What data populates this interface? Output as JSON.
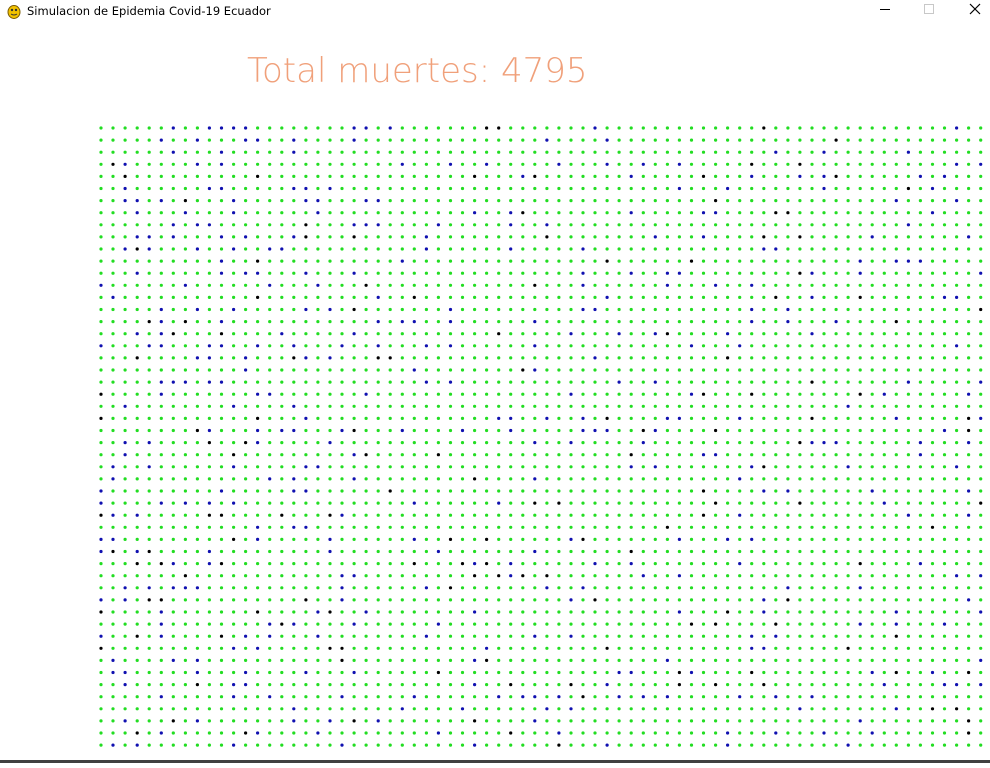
{
  "window": {
    "title": "Simulacion de Epidemia Covid-19 Ecuador",
    "icon": "pygame-snake-icon",
    "controls": {
      "minimize": "minimize-icon",
      "maximize": "maximize-icon",
      "close": "close-icon"
    }
  },
  "hud": {
    "deaths_label": "Total muertes: 4795"
  },
  "colors": {
    "healthy": "#22dd22",
    "recovered": "#1010b0",
    "dead": "#000000",
    "counter_text": "#f0a07a",
    "background": "#ffffff"
  },
  "population": {
    "columns": 75,
    "rows": 53,
    "states": [
      "healthy",
      "recovered",
      "dead"
    ]
  }
}
